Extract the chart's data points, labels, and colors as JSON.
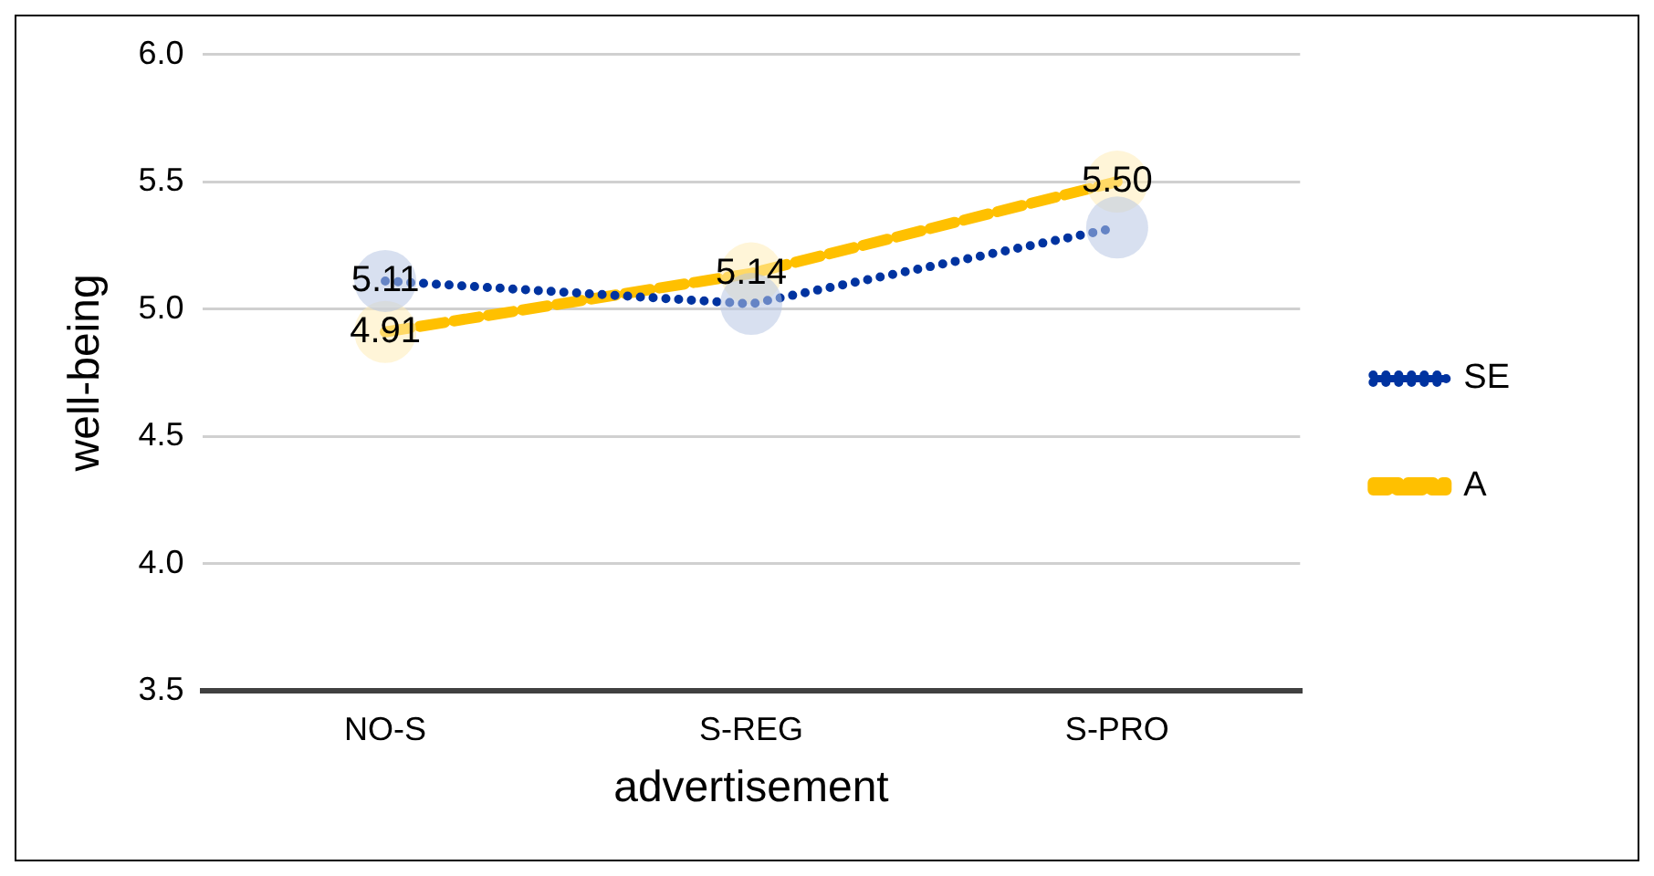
{
  "chart_data": {
    "type": "line",
    "xlabel": "advertisement",
    "ylabel": "well-being",
    "categories": [
      "NO-S",
      "S-REG",
      "S-PRO"
    ],
    "series": [
      {
        "name": "SE",
        "color": "#0033a0",
        "values": [
          5.11,
          5.02,
          5.32
        ],
        "line_style": "dotted",
        "value_labels": [
          "5.11",
          null,
          null
        ]
      },
      {
        "name": "A",
        "color": "#ffc000",
        "values": [
          4.91,
          5.14,
          5.5
        ],
        "line_style": "dashed",
        "value_labels": [
          "4.91",
          "5.14",
          "5.50"
        ]
      }
    ],
    "ylim": [
      3.5,
      6.0
    ],
    "yticks": [
      3.5,
      {
        "value": 4,
        "label": "4.0"
      },
      4.5,
      {
        "value": 5,
        "label": "5.0"
      },
      5.5,
      {
        "value": 6,
        "label": "6.0"
      }
    ],
    "grid": "y",
    "legend": "right",
    "marker": "circle"
  }
}
